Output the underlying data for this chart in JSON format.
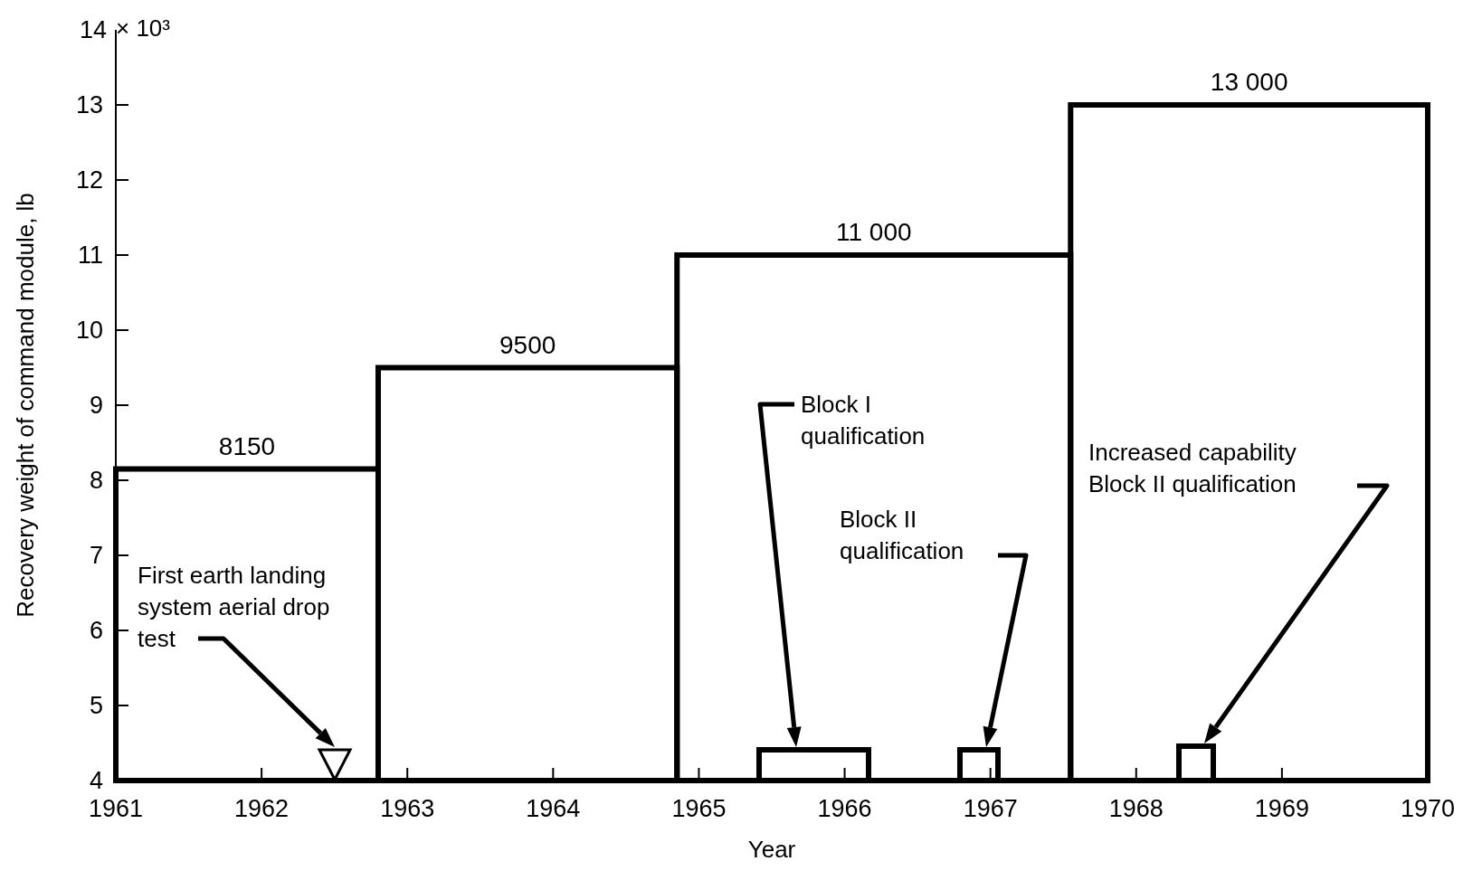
{
  "chart_data": {
    "type": "histogram",
    "bins": [
      1961,
      1962.8,
      1964.85,
      1967.55,
      1970
    ],
    "values": [
      8.15,
      9.5,
      11,
      13
    ],
    "color": "#000000",
    "xlabel": "Year",
    "ylabel": "Recovery weight of command module, lb",
    "xlim": [
      1961,
      1970
    ],
    "xticks": [
      1961,
      1962,
      1963,
      1964,
      1965,
      1966,
      1967,
      1968,
      1969,
      1970
    ],
    "ylim": [
      4,
      14
    ],
    "yticks": [
      4,
      5,
      6,
      7,
      8,
      9,
      10,
      11,
      12,
      13,
      14
    ],
    "annotations": [
      "First earth landing\nsystem aerial drop\ntest",
      "Block I\nqualification",
      "Block II\nqualification",
      "Increased capability\nBlock II qualification",
      "× 10³",
      "8150",
      "9500",
      "11 000",
      "13 000"
    ]
  }
}
